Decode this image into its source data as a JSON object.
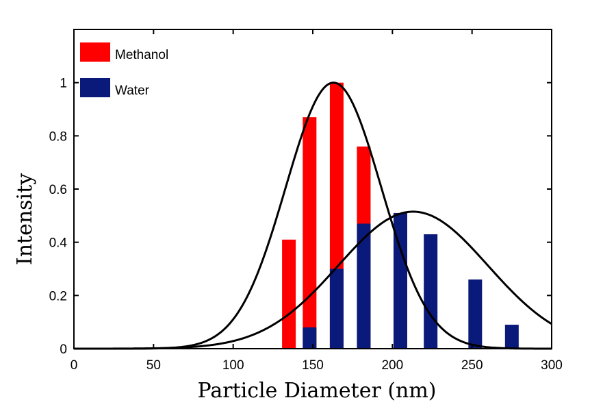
{
  "chart_data": {
    "type": "bar",
    "title": "",
    "xlabel": "Particle Diameter (nm)",
    "ylabel": "Intensity",
    "xlim": [
      0,
      300
    ],
    "ylim": [
      0,
      1.2
    ],
    "xticks": [
      "0",
      "50",
      "100",
      "150",
      "200",
      "250",
      "300"
    ],
    "yticks": [
      "0",
      "0.2",
      "0.4",
      "0.6",
      "0.8",
      "1"
    ],
    "grid": false,
    "legend_position": "top-left",
    "series": [
      {
        "name": "Methanol",
        "kind": "bar",
        "color": "#ff0000",
        "x": [
          135,
          148,
          165,
          182,
          205
        ],
        "values": [
          0.41,
          0.87,
          1.0,
          0.76,
          0.51
        ]
      },
      {
        "name": "Water",
        "kind": "bar",
        "color": "#0a1a7a",
        "x": [
          148,
          165,
          182,
          205,
          224,
          252,
          275
        ],
        "values": [
          0.08,
          0.3,
          0.47,
          0.51,
          0.43,
          0.26,
          0.09
        ]
      },
      {
        "kind": "line",
        "color": "#000000",
        "gaussian": {
          "peak": 1.0,
          "center": 163,
          "sigma": 30
        }
      },
      {
        "kind": "line",
        "color": "#000000",
        "gaussian": {
          "peak": 0.515,
          "center": 213,
          "sigma": 47
        }
      }
    ]
  }
}
